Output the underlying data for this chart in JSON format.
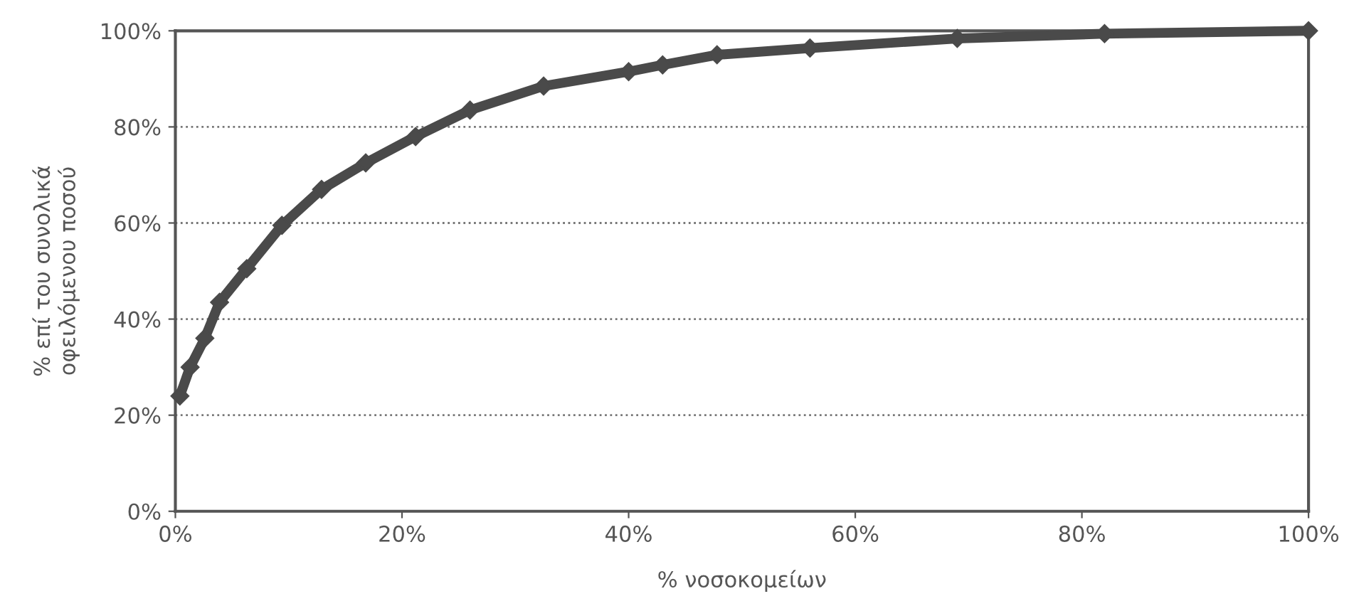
{
  "chart_data": {
    "type": "line",
    "xlabel": "% νοσοκομείων",
    "ylabel": "% επί του συνολικά\nοφειλόμενου ποσού",
    "series": [
      {
        "color": "#4a4a4a",
        "x": [
          0.4,
          1.3,
          2.6,
          3.9,
          6.3,
          9.4,
          12.9,
          16.8,
          21.2,
          26,
          32.5,
          40,
          43,
          47.8,
          56,
          69,
          82,
          100
        ],
        "values": [
          24,
          30,
          36,
          43.5,
          50.5,
          59.5,
          67,
          72.5,
          78,
          83.5,
          88.5,
          91.5,
          92.9,
          95,
          96.4,
          98.4,
          99.4,
          100
        ]
      }
    ],
    "xlim": [
      0,
      100
    ],
    "ylim": [
      0,
      100
    ],
    "xticks": [
      {
        "value": 0,
        "label": "0%"
      },
      {
        "value": 20,
        "label": "20%"
      },
      {
        "value": 40,
        "label": "40%"
      },
      {
        "value": 60,
        "label": "60%"
      },
      {
        "value": 80,
        "label": "80%"
      },
      {
        "value": 100,
        "label": "100%"
      }
    ],
    "yticks": [
      {
        "value": 0,
        "label": "0%"
      },
      {
        "value": 20,
        "label": "20%"
      },
      {
        "value": 40,
        "label": "40%"
      },
      {
        "value": 60,
        "label": "60%"
      },
      {
        "value": 80,
        "label": "80%"
      },
      {
        "value": 100,
        "label": "100%"
      }
    ],
    "grid": "y",
    "marker": "diamond",
    "line_style": "solid"
  }
}
